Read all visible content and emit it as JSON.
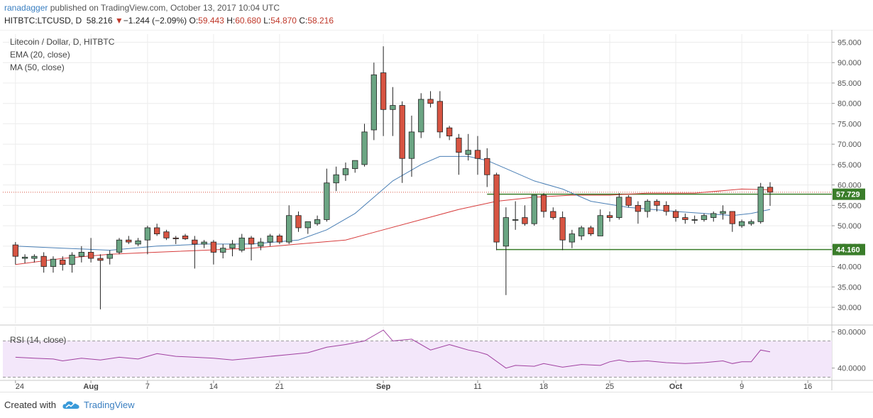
{
  "header": {
    "author": "ranadagger",
    "published_text": "published on TradingView.com, October 13, 2017 10:04 UTC",
    "symbol": "HITBTC:LTCUSD, D",
    "last": "58.216",
    "change_arrow": "▼",
    "change": "−1.244 (−2.09%)",
    "open_label": "O:",
    "open": "59.443",
    "high_label": "H:",
    "high": "60.680",
    "low_label": "L:",
    "low": "54.870",
    "close_label": "C:",
    "close": "58.216"
  },
  "legend": {
    "title": "Litecoin / Dollar, D, HITBTC",
    "ema": "EMA (20, close)",
    "ma": "MA (50, close)",
    "rsi": "RSI (14, close)"
  },
  "footer": {
    "created_with": "Created with",
    "brand": "TradingView"
  },
  "colors": {
    "up_candle": "#6ba583",
    "down_candle": "#d75442",
    "ema": "#4a7fb5",
    "ma": "#d73c3c",
    "rsi": "#a040a0",
    "rsi_band": "#f3e7fa",
    "support_line": "#3a7d2a",
    "grid": "#ececec"
  },
  "chart_data": [
    {
      "type": "candlestick",
      "title": "Litecoin / Dollar, D, HITBTC",
      "ylim": [
        26,
        97
      ],
      "y_ticks": [
        "95.000",
        "90.000",
        "85.000",
        "80.000",
        "75.000",
        "70.000",
        "65.000",
        "60.000",
        "55.000",
        "50.000",
        "45.000",
        "40.000",
        "35.000",
        "30.000"
      ],
      "x_labels": [
        "24",
        "Aug",
        "7",
        "14",
        "21",
        "Sep",
        "11",
        "18",
        "25",
        "Oct",
        "9",
        "16"
      ],
      "x_label_days": [
        -7,
        1,
        7,
        14,
        21,
        32,
        42,
        49,
        56,
        63,
        70,
        77
      ],
      "date_start": "2017-07-24",
      "candles": [
        {
          "d": -7,
          "o": 45.3,
          "h": 46.0,
          "l": 40.5,
          "c": 42.5
        },
        {
          "d": -6,
          "o": 42.0,
          "h": 43.0,
          "l": 40.8,
          "c": 42.3
        },
        {
          "d": -5,
          "o": 42.0,
          "h": 43.0,
          "l": 41.0,
          "c": 42.5
        },
        {
          "d": -4,
          "o": 42.5,
          "h": 43.5,
          "l": 38.5,
          "c": 40.0
        },
        {
          "d": -3,
          "o": 40.0,
          "h": 42.5,
          "l": 38.5,
          "c": 41.8
        },
        {
          "d": -2,
          "o": 41.6,
          "h": 42.5,
          "l": 39.0,
          "c": 40.5
        },
        {
          "d": -1,
          "o": 40.5,
          "h": 43.5,
          "l": 38.5,
          "c": 42.8
        },
        {
          "d": 0,
          "o": 42.5,
          "h": 45.0,
          "l": 41.0,
          "c": 43.5
        },
        {
          "d": 1,
          "o": 43.5,
          "h": 47.0,
          "l": 41.0,
          "c": 42.0
        },
        {
          "d": 2,
          "o": 42.0,
          "h": 43.0,
          "l": 29.5,
          "c": 41.5
        },
        {
          "d": 3,
          "o": 42.0,
          "h": 44.0,
          "l": 40.5,
          "c": 43.0
        },
        {
          "d": 4,
          "o": 43.5,
          "h": 47.0,
          "l": 43.0,
          "c": 46.5
        },
        {
          "d": 5,
          "o": 46.5,
          "h": 47.5,
          "l": 45.5,
          "c": 46.0
        },
        {
          "d": 6,
          "o": 45.5,
          "h": 47.0,
          "l": 45.0,
          "c": 46.3
        },
        {
          "d": 7,
          "o": 46.5,
          "h": 50.0,
          "l": 43.0,
          "c": 49.5
        },
        {
          "d": 8,
          "o": 49.5,
          "h": 50.5,
          "l": 47.5,
          "c": 48.0
        },
        {
          "d": 9,
          "o": 48.5,
          "h": 49.0,
          "l": 46.5,
          "c": 47.0
        },
        {
          "d": 10,
          "o": 47.0,
          "h": 47.5,
          "l": 45.5,
          "c": 46.8
        },
        {
          "d": 11,
          "o": 47.5,
          "h": 48.0,
          "l": 46.5,
          "c": 46.8
        },
        {
          "d": 12,
          "o": 46.5,
          "h": 47.5,
          "l": 39.5,
          "c": 45.5
        },
        {
          "d": 13,
          "o": 45.5,
          "h": 46.5,
          "l": 44.5,
          "c": 46.0
        },
        {
          "d": 14,
          "o": 46.0,
          "h": 46.5,
          "l": 40.5,
          "c": 43.5
        },
        {
          "d": 15,
          "o": 43.5,
          "h": 45.5,
          "l": 42.0,
          "c": 44.5
        },
        {
          "d": 16,
          "o": 44.5,
          "h": 46.5,
          "l": 42.5,
          "c": 45.5
        },
        {
          "d": 17,
          "o": 44.0,
          "h": 48.0,
          "l": 43.5,
          "c": 47.0
        },
        {
          "d": 18,
          "o": 47.0,
          "h": 47.5,
          "l": 41.5,
          "c": 45.5
        },
        {
          "d": 19,
          "o": 45.0,
          "h": 47.0,
          "l": 44.0,
          "c": 46.0
        },
        {
          "d": 20,
          "o": 46.0,
          "h": 48.0,
          "l": 45.0,
          "c": 47.5
        },
        {
          "d": 21,
          "o": 47.5,
          "h": 48.0,
          "l": 45.5,
          "c": 46.0
        },
        {
          "d": 22,
          "o": 46.0,
          "h": 55.0,
          "l": 45.5,
          "c": 52.5
        },
        {
          "d": 23,
          "o": 52.5,
          "h": 53.5,
          "l": 48.5,
          "c": 49.5
        },
        {
          "d": 24,
          "o": 49.5,
          "h": 51.0,
          "l": 48.0,
          "c": 51.0
        },
        {
          "d": 25,
          "o": 50.5,
          "h": 52.5,
          "l": 50.0,
          "c": 51.5
        },
        {
          "d": 26,
          "o": 51.5,
          "h": 64.0,
          "l": 51.0,
          "c": 60.5
        },
        {
          "d": 27,
          "o": 60.5,
          "h": 64.5,
          "l": 58.5,
          "c": 62.5
        },
        {
          "d": 28,
          "o": 62.5,
          "h": 65.5,
          "l": 61.0,
          "c": 64.0
        },
        {
          "d": 29,
          "o": 64.0,
          "h": 66.0,
          "l": 63.0,
          "c": 66.0
        },
        {
          "d": 30,
          "o": 65.0,
          "h": 75.0,
          "l": 64.5,
          "c": 73.0
        },
        {
          "d": 31,
          "o": 73.5,
          "h": 90.0,
          "l": 71.0,
          "c": 87.0
        },
        {
          "d": 32,
          "o": 87.5,
          "h": 94.0,
          "l": 72.0,
          "c": 78.5
        },
        {
          "d": 33,
          "o": 78.5,
          "h": 84.0,
          "l": 72.0,
          "c": 79.5
        },
        {
          "d": 34,
          "o": 79.5,
          "h": 80.5,
          "l": 60.5,
          "c": 66.5
        },
        {
          "d": 35,
          "o": 66.5,
          "h": 77.0,
          "l": 62.0,
          "c": 73.0
        },
        {
          "d": 36,
          "o": 73.0,
          "h": 82.5,
          "l": 71.5,
          "c": 81.0
        },
        {
          "d": 37,
          "o": 81.0,
          "h": 83.0,
          "l": 79.0,
          "c": 80.0
        },
        {
          "d": 38,
          "o": 80.5,
          "h": 83.0,
          "l": 71.5,
          "c": 73.0
        },
        {
          "d": 39,
          "o": 74.0,
          "h": 74.5,
          "l": 71.0,
          "c": 72.0
        },
        {
          "d": 40,
          "o": 71.5,
          "h": 72.5,
          "l": 62.5,
          "c": 68.0
        },
        {
          "d": 41,
          "o": 67.5,
          "h": 72.5,
          "l": 66.0,
          "c": 68.5
        },
        {
          "d": 42,
          "o": 68.5,
          "h": 72.0,
          "l": 62.5,
          "c": 66.5
        },
        {
          "d": 43,
          "o": 66.5,
          "h": 69.0,
          "l": 59.5,
          "c": 62.5
        },
        {
          "d": 44,
          "o": 62.5,
          "h": 63.0,
          "l": 44.0,
          "c": 46.0
        },
        {
          "d": 45,
          "o": 45.0,
          "h": 54.5,
          "l": 33.0,
          "c": 52.0
        },
        {
          "d": 46,
          "o": 51.5,
          "h": 56.0,
          "l": 49.0,
          "c": 51.5
        },
        {
          "d": 47,
          "o": 52.0,
          "h": 55.0,
          "l": 50.0,
          "c": 50.5
        },
        {
          "d": 48,
          "o": 50.5,
          "h": 57.0,
          "l": 50.0,
          "c": 57.5
        },
        {
          "d": 49,
          "o": 57.5,
          "h": 58.0,
          "l": 52.0,
          "c": 53.5
        },
        {
          "d": 50,
          "o": 53.5,
          "h": 54.5,
          "l": 51.5,
          "c": 52.0
        },
        {
          "d": 51,
          "o": 52.0,
          "h": 53.5,
          "l": 44.0,
          "c": 46.5
        },
        {
          "d": 52,
          "o": 46.0,
          "h": 49.0,
          "l": 44.5,
          "c": 48.0
        },
        {
          "d": 53,
          "o": 47.5,
          "h": 50.0,
          "l": 46.5,
          "c": 49.5
        },
        {
          "d": 54,
          "o": 49.5,
          "h": 50.0,
          "l": 47.5,
          "c": 48.0
        },
        {
          "d": 55,
          "o": 47.5,
          "h": 54.0,
          "l": 47.5,
          "c": 52.5
        },
        {
          "d": 56,
          "o": 52.5,
          "h": 53.5,
          "l": 51.0,
          "c": 52.0
        },
        {
          "d": 57,
          "o": 52.0,
          "h": 58.0,
          "l": 51.5,
          "c": 57.0
        },
        {
          "d": 58,
          "o": 57.0,
          "h": 57.5,
          "l": 54.5,
          "c": 55.0
        },
        {
          "d": 59,
          "o": 55.0,
          "h": 56.0,
          "l": 50.5,
          "c": 53.5
        },
        {
          "d": 60,
          "o": 53.5,
          "h": 56.5,
          "l": 52.0,
          "c": 56.0
        },
        {
          "d": 61,
          "o": 56.0,
          "h": 56.5,
          "l": 53.5,
          "c": 55.0
        },
        {
          "d": 62,
          "o": 55.0,
          "h": 56.0,
          "l": 52.5,
          "c": 53.5
        },
        {
          "d": 63,
          "o": 53.5,
          "h": 54.0,
          "l": 51.0,
          "c": 52.0
        },
        {
          "d": 64,
          "o": 52.0,
          "h": 53.0,
          "l": 50.5,
          "c": 51.5
        },
        {
          "d": 65,
          "o": 51.5,
          "h": 52.5,
          "l": 50.5,
          "c": 51.5
        },
        {
          "d": 66,
          "o": 51.5,
          "h": 53.0,
          "l": 51.0,
          "c": 52.5
        },
        {
          "d": 67,
          "o": 52.0,
          "h": 53.5,
          "l": 51.0,
          "c": 53.0
        },
        {
          "d": 68,
          "o": 53.0,
          "h": 55.0,
          "l": 51.5,
          "c": 53.5
        },
        {
          "d": 69,
          "o": 53.5,
          "h": 53.5,
          "l": 48.5,
          "c": 50.5
        },
        {
          "d": 70,
          "o": 50.0,
          "h": 51.5,
          "l": 49.5,
          "c": 51.0
        },
        {
          "d": 71,
          "o": 50.5,
          "h": 51.5,
          "l": 50.0,
          "c": 51.0
        },
        {
          "d": 72,
          "o": 51.0,
          "h": 60.5,
          "l": 50.5,
          "c": 59.5
        },
        {
          "d": 73,
          "o": 59.443,
          "h": 60.68,
          "l": 54.87,
          "c": 58.216
        }
      ],
      "ema_20": [
        [
          -7,
          45.0
        ],
        [
          -2,
          44.5
        ],
        [
          3,
          44.0
        ],
        [
          8,
          45.0
        ],
        [
          13,
          45.5
        ],
        [
          18,
          45.5
        ],
        [
          23,
          46.5
        ],
        [
          26,
          49.0
        ],
        [
          29,
          53.0
        ],
        [
          31,
          57.0
        ],
        [
          33,
          61.0
        ],
        [
          36,
          65.0
        ],
        [
          38,
          67.0
        ],
        [
          41,
          67.0
        ],
        [
          43,
          66.0
        ],
        [
          45,
          64.0
        ],
        [
          48,
          61.0
        ],
        [
          51,
          59.0
        ],
        [
          54,
          56.0
        ],
        [
          58,
          54.5
        ],
        [
          63,
          53.5
        ],
        [
          66,
          53.0
        ],
        [
          69,
          52.5
        ],
        [
          71,
          53.0
        ],
        [
          73,
          54.0
        ]
      ],
      "ma_50": [
        [
          -7,
          40.5
        ],
        [
          -2,
          42.0
        ],
        [
          3,
          43.0
        ],
        [
          8,
          43.5
        ],
        [
          13,
          44.0
        ],
        [
          18,
          44.5
        ],
        [
          23,
          45.5
        ],
        [
          28,
          46.5
        ],
        [
          32,
          49.0
        ],
        [
          36,
          51.5
        ],
        [
          40,
          54.0
        ],
        [
          44,
          56.0
        ],
        [
          48,
          57.0
        ],
        [
          52,
          57.5
        ],
        [
          56,
          57.5
        ],
        [
          60,
          58.0
        ],
        [
          65,
          58.0
        ],
        [
          70,
          59.0
        ],
        [
          73,
          58.8
        ]
      ],
      "support_lines": [
        {
          "value": 57.729,
          "label": "57.729",
          "from_day": 43
        },
        {
          "value": 44.16,
          "label": "44.160",
          "from_day": 44
        }
      ],
      "last_price_line": 58.216
    },
    {
      "type": "line",
      "title": "RSI (14, close)",
      "ylim": [
        28,
        86
      ],
      "y_ticks": [
        "80.0000",
        "40.0000"
      ],
      "bands": [
        30,
        70
      ],
      "series": [
        {
          "values": [
            [
              -7,
              52
            ],
            [
              -5,
              51
            ],
            [
              -3,
              50
            ],
            [
              -2,
              48
            ],
            [
              0,
              51
            ],
            [
              2,
              49
            ],
            [
              4,
              52
            ],
            [
              6,
              50
            ],
            [
              7,
              53
            ],
            [
              8,
              56
            ],
            [
              10,
              53
            ],
            [
              12,
              52
            ],
            [
              14,
              51
            ],
            [
              16,
              49
            ],
            [
              18,
              51
            ],
            [
              20,
              53
            ],
            [
              22,
              55
            ],
            [
              24,
              57
            ],
            [
              26,
              63
            ],
            [
              28,
              66
            ],
            [
              30,
              70
            ],
            [
              32,
              82
            ],
            [
              33,
              70
            ],
            [
              35,
              72
            ],
            [
              37,
              60
            ],
            [
              39,
              66
            ],
            [
              41,
              60
            ],
            [
              42,
              58
            ],
            [
              43,
              55
            ],
            [
              45,
              40
            ],
            [
              46,
              43
            ],
            [
              48,
              42
            ],
            [
              49,
              45
            ],
            [
              51,
              41
            ],
            [
              53,
              44
            ],
            [
              55,
              43
            ],
            [
              56,
              47
            ],
            [
              57,
              49
            ],
            [
              58,
              47
            ],
            [
              60,
              48
            ],
            [
              62,
              46
            ],
            [
              64,
              45
            ],
            [
              66,
              46
            ],
            [
              68,
              48
            ],
            [
              69,
              45
            ],
            [
              70,
              47
            ],
            [
              71,
              47
            ],
            [
              72,
              60
            ],
            [
              73,
              58
            ]
          ]
        }
      ]
    }
  ]
}
